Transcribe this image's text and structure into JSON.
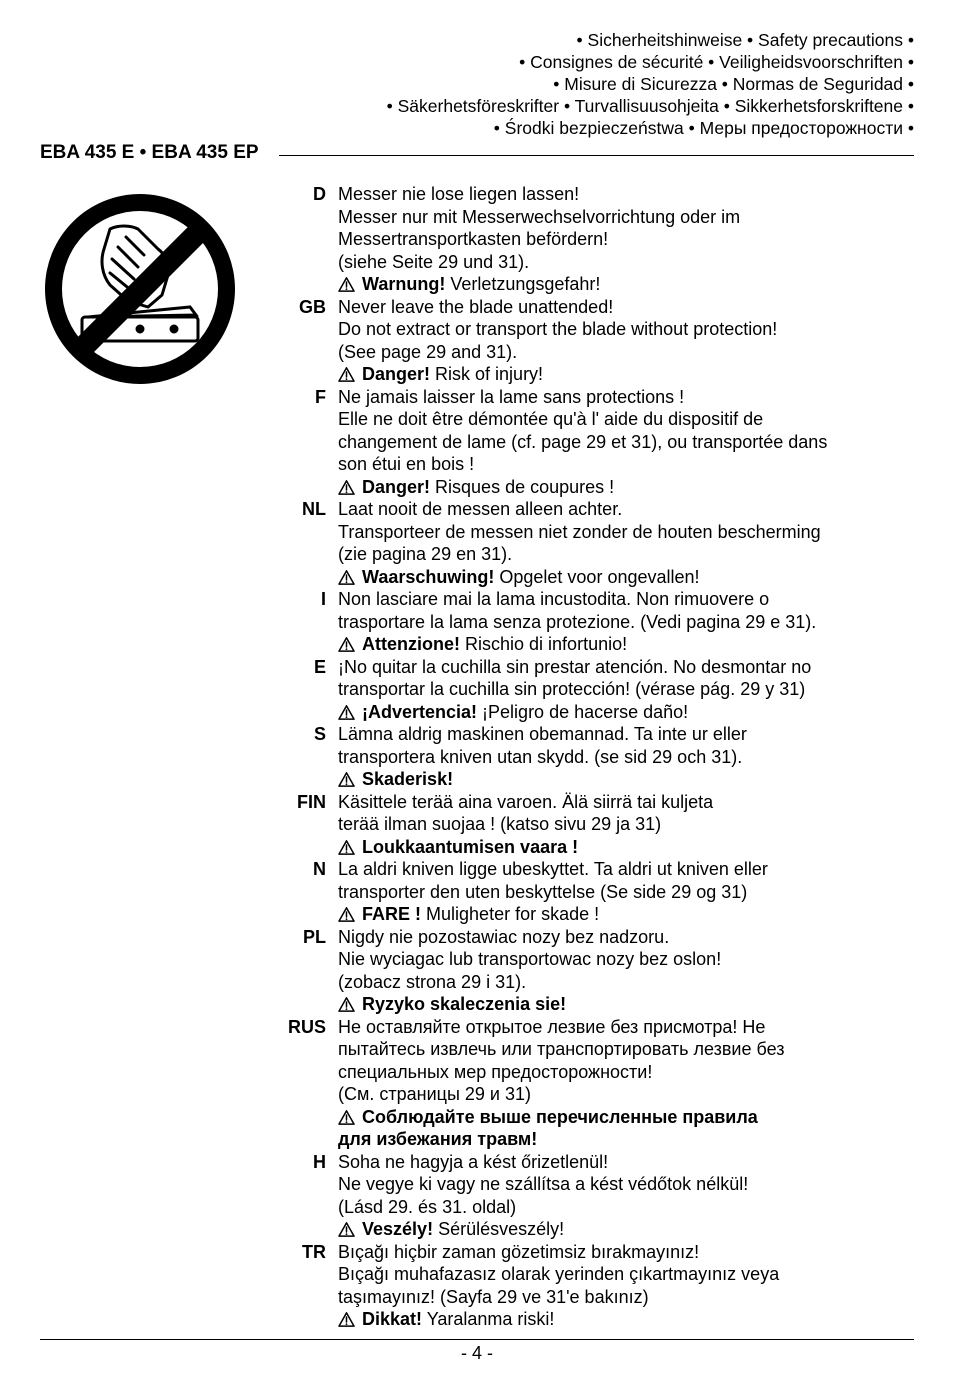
{
  "header": {
    "rows": [
      "• Sicherheitshinweise • Safety precautions •",
      "• Consignes de sécurité • Veiligheidsvoorschriften •",
      "• Misure di Sicurezza • Normas de Seguridad •",
      "• Säkerhetsföreskrifter • Turvallisuusohjeita • Sikkerhetsforskriftene •",
      "• Środki bezpieczeństwa • Меры предосторожности •"
    ]
  },
  "model": "EBA 435 E • EBA 435 EP",
  "entries": [
    {
      "lang": "D",
      "lines": [
        "Messer nie lose liegen lassen!",
        "Messer nur mit Messerwechselvorrichtung oder im",
        "Messertransportkasten befördern!",
        "(siehe Seite 29 und 31)."
      ],
      "warnBold": "Warnung!",
      "warnRest": " Verletzungsgefahr!"
    },
    {
      "lang": "GB",
      "lines": [
        "Never leave the blade unattended!",
        "Do not extract or transport the blade without protection!",
        "(See page 29 and 31)."
      ],
      "warnBold": "Danger!",
      "warnRest": " Risk of injury!"
    },
    {
      "lang": "F",
      "lines": [
        "Ne jamais laisser la lame sans protections !",
        "Elle ne doit être démontée qu'à l' aide du dispositif de",
        "changement de lame (cf. page 29 et 31), ou transportée dans",
        "son étui en bois !"
      ],
      "warnBold": "Danger!",
      "warnRest": " Risques de coupures !"
    },
    {
      "lang": "NL",
      "lines": [
        "Laat nooit de messen alleen achter.",
        "Transporteer de messen niet zonder de houten bescherming",
        "(zie pagina 29 en 31)."
      ],
      "warnBold": "Waarschuwing!",
      "warnRest": " Opgelet voor ongevallen!"
    },
    {
      "lang": "I",
      "lines": [
        "Non lasciare mai la lama incustodita. Non rimuovere o",
        "trasportare la lama senza protezione. (Vedi pagina 29 e 31)."
      ],
      "warnBold": "Attenzione!",
      "warnRest": " Rischio di infortunio!"
    },
    {
      "lang": "E",
      "lines": [
        "¡No quitar la cuchilla sin prestar atención. No desmontar no",
        "transportar la cuchilla sin protección! (vérase pág. 29 y 31)"
      ],
      "warnBold": "¡Advertencia!",
      "warnRest": " ¡Peligro de hacerse daño!"
    },
    {
      "lang": "S",
      "lines": [
        "Lämna aldrig maskinen obemannad. Ta inte ur eller",
        "transportera kniven utan skydd. (se sid 29 och 31)."
      ],
      "warnBold": "Skaderisk!",
      "warnRest": ""
    },
    {
      "lang": "FIN",
      "lines": [
        "Käsittele terää aina varoen. Älä siirrä tai kuljeta",
        "terää ilman suojaa ! (katso sivu 29 ja 31)"
      ],
      "warnBold": "Loukkaantumisen vaara !",
      "warnRest": ""
    },
    {
      "lang": "N",
      "lines": [
        "La aldri kniven ligge ubeskyttet. Ta aldri ut kniven eller",
        "transporter den uten beskyttelse (Se side 29 og 31)"
      ],
      "warnBold": "FARE !",
      "warnRest": " Muligheter for skade !"
    },
    {
      "lang": "PL",
      "lines": [
        "Nigdy nie pozostawiac nozy bez nadzoru.",
        "Nie wyciagac lub transportowac nozy bez oslon!",
        "(zobacz strona 29 i 31)."
      ],
      "warnBold": "Ryzyko skaleczenia sie!",
      "warnRest": ""
    },
    {
      "lang": "RUS",
      "lines": [
        "Не оставляйте открытое лезвие без присмотра! Не",
        "пытайтесь извлечь или транспортировать лезвие без",
        "специальных мер предосторожности!",
        "(См. страницы 29 и 31)"
      ],
      "warnBold": "Соблюдайте выше перечисленные правила",
      "warnRest": "",
      "warnBold2": "для избежания травм!"
    },
    {
      "lang": "H",
      "lines": [
        "Soha ne hagyja a kést őrizetlenül!",
        "Ne vegye ki vagy ne szállítsa a kést védőtok nélkül!",
        "(Lásd 29. és 31. oldal)"
      ],
      "warnBold": "Veszély!",
      "warnRest": " Sérülésveszély!"
    },
    {
      "lang": "TR",
      "lines": [
        "Bıçağı hiçbir zaman gözetimsiz bırakmayınız!",
        "Bıçağı muhafazasız olarak yerinden çıkartmayınız veya",
        "taşımayınız! (Sayfa 29 ve 31'e bakınız)"
      ],
      "warnBold": "Dikkat!",
      "warnRest": "  Yaralanma riski!"
    }
  ],
  "pageNumber": "- 4 -",
  "colors": {
    "text": "#000000",
    "background": "#ffffff",
    "icon_stroke": "#000000"
  }
}
